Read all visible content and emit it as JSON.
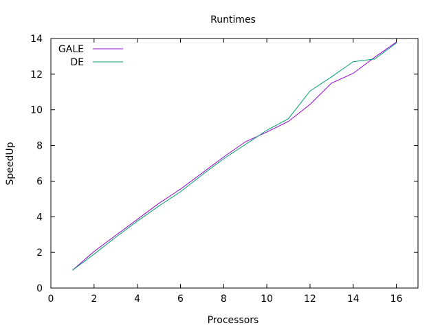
{
  "chart_data": {
    "type": "line",
    "title": "Runtimes",
    "xlabel": "Processors",
    "ylabel": "SpeedUp",
    "xlim": [
      0,
      17
    ],
    "ylim": [
      0,
      14
    ],
    "x_ticks": [
      0,
      2,
      4,
      6,
      8,
      10,
      12,
      14,
      16
    ],
    "y_ticks": [
      0,
      2,
      4,
      6,
      8,
      10,
      12,
      14
    ],
    "grid": false,
    "legend_position": "top-left",
    "series": [
      {
        "name": "GALE",
        "color": "#9400d3",
        "x": [
          1,
          2,
          3,
          4,
          5,
          6,
          7,
          8,
          9,
          10,
          11,
          12,
          13,
          14,
          15,
          16
        ],
        "values": [
          1.0,
          2.05,
          2.95,
          3.85,
          4.75,
          5.55,
          6.45,
          7.35,
          8.2,
          8.75,
          9.35,
          10.3,
          11.5,
          12.05,
          12.95,
          13.8
        ]
      },
      {
        "name": "DE",
        "color": "#009e73",
        "x": [
          1,
          2,
          3,
          4,
          5,
          6,
          7,
          8,
          9,
          10,
          11,
          12,
          13,
          14,
          15,
          16
        ],
        "values": [
          1.0,
          1.9,
          2.85,
          3.75,
          4.6,
          5.4,
          6.35,
          7.25,
          8.05,
          8.85,
          9.5,
          11.05,
          11.85,
          12.7,
          12.85,
          13.75
        ]
      }
    ]
  }
}
